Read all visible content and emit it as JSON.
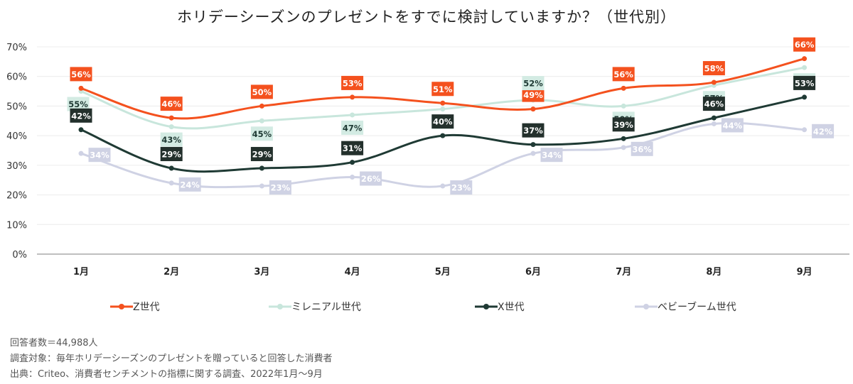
{
  "title": "ホリデーシーズンのプレゼントをすでに検討していますか？（世代別）",
  "chart_data": {
    "type": "line",
    "title": "ホリデーシーズンのプレゼントをすでに検討していますか？（世代別）",
    "categories": [
      "1月",
      "2月",
      "3月",
      "4月",
      "5月",
      "6月",
      "7月",
      "8月",
      "9月"
    ],
    "ylim": [
      0,
      70
    ],
    "yticks": [
      "0%",
      "10%",
      "20%",
      "30%",
      "40%",
      "50%",
      "60%",
      "70%"
    ],
    "grid": true,
    "legend_position": "bottom",
    "series": [
      {
        "name": "Z世代",
        "color": "#f4511e",
        "values": [
          56,
          46,
          50,
          53,
          51,
          49,
          56,
          58,
          66
        ]
      },
      {
        "name": "ミレニアル世代",
        "color": "#c8e6dc",
        "values": [
          55,
          43,
          45,
          47,
          49,
          52,
          50,
          57,
          63
        ]
      },
      {
        "name": "X世代",
        "color": "#1f3a34",
        "values": [
          42,
          29,
          29,
          31,
          40,
          37,
          39,
          46,
          53
        ]
      },
      {
        "name": "ベビーブーム世代",
        "color": "#cfd2e4",
        "values": [
          34,
          24,
          23,
          26,
          23,
          34,
          36,
          44,
          42
        ]
      }
    ]
  },
  "notes": {
    "respondents": "回答者数＝44,988人",
    "target": "調査対象：毎年ホリデーシーズンのプレゼントを贈っていると回答した消費者",
    "source": "出典：Criteo、消費者センチメントの指標に関する調査、2022年1月～9月"
  }
}
